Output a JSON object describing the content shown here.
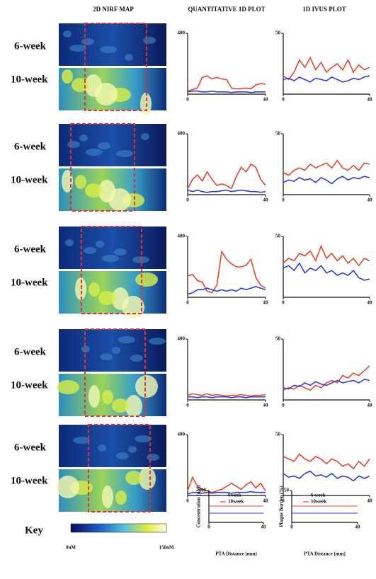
{
  "headers": [
    "2D NIRF MAP",
    "QUANTITATIVE 1D PLOT",
    "1D IVUS PLOT"
  ],
  "rows": [
    [
      "6-week",
      "10-week"
    ],
    [
      "6-week",
      "10-week"
    ],
    [
      "6-week",
      "10-week"
    ],
    [
      "6-week",
      "10-week"
    ],
    [
      "6-week",
      "10-week"
    ]
  ],
  "key": {
    "title": "Key",
    "colorbar": {
      "min_label": "0nM",
      "max_label": "150nM"
    },
    "quant": {
      "ylabel": "Concentration (nM)",
      "xlabel": "PTA Distance (mm)",
      "ylim": [
        0,
        400
      ],
      "yticks": [
        400
      ],
      "xlim": [
        0,
        40
      ],
      "xticks": [
        0,
        40
      ],
      "legend": [
        {
          "name": "6week",
          "color": "#2b3fe0"
        },
        {
          "name": "10week",
          "color": "#e8452b"
        }
      ]
    },
    "ivus": {
      "ylabel": "Plaque Burden (%)",
      "xlabel": "PTA Distance (mm)",
      "ylim": [
        0,
        50
      ],
      "yticks": [
        50
      ],
      "xlim": [
        0,
        40
      ],
      "xticks": [
        0,
        40
      ],
      "legend": [
        {
          "name": "6 week",
          "color": "#2b3fe0"
        },
        {
          "name": "10week",
          "color": "#e8452b"
        }
      ]
    }
  },
  "chart_data": [
    {
      "type": "line",
      "x": [
        0,
        2.5,
        5,
        7.5,
        10,
        12.5,
        15,
        17.5,
        20,
        22.5,
        25,
        27.5,
        30,
        32.5,
        35,
        37.5,
        40
      ],
      "xlim": [
        0,
        40
      ],
      "xticks": [
        0,
        40
      ],
      "ylim": [
        0,
        400
      ],
      "yticks": [
        400
      ],
      "series": [
        {
          "color": "#e8452b",
          "values": [
            20,
            30,
            40,
            110,
            120,
            100,
            110,
            100,
            95,
            40,
            35,
            35,
            40,
            35,
            60,
            70,
            65
          ]
        },
        {
          "color": "#2b3fe0",
          "values": [
            15,
            20,
            20,
            15,
            15,
            20,
            15,
            15,
            15,
            10,
            15,
            15,
            15,
            10,
            15,
            15,
            15
          ]
        }
      ]
    },
    {
      "type": "line",
      "x": [
        0,
        2.5,
        5,
        7.5,
        10,
        12.5,
        15,
        17.5,
        20,
        22.5,
        25,
        27.5,
        30,
        32.5,
        35,
        37.5,
        40
      ],
      "xlim": [
        0,
        40
      ],
      "xticks": [
        0,
        40
      ],
      "ylim": [
        0,
        50
      ],
      "yticks": [
        50
      ],
      "series": [
        {
          "color": "#e8452b",
          "values": [
            15,
            12,
            18,
            28,
            22,
            30,
            20,
            26,
            18,
            22,
            25,
            20,
            28,
            18,
            24,
            20,
            22
          ]
        },
        {
          "color": "#2b3fe0",
          "values": [
            12,
            13,
            11,
            14,
            12,
            10,
            13,
            12,
            11,
            14,
            12,
            10,
            11,
            13,
            12,
            14,
            15
          ]
        }
      ]
    },
    {
      "type": "line",
      "x": [
        0,
        2.5,
        5,
        7.5,
        10,
        12.5,
        15,
        17.5,
        20,
        22.5,
        25,
        27.5,
        30,
        32.5,
        35,
        37.5,
        40
      ],
      "xlim": [
        0,
        40
      ],
      "xticks": [
        0,
        40
      ],
      "ylim": [
        0,
        400
      ],
      "yticks": [
        400
      ],
      "series": [
        {
          "color": "#e8452b",
          "values": [
            40,
            100,
            130,
            90,
            150,
            100,
            60,
            70,
            60,
            40,
            120,
            180,
            150,
            200,
            180,
            100,
            60
          ]
        },
        {
          "color": "#2b3fe0",
          "values": [
            30,
            20,
            30,
            20,
            15,
            20,
            20,
            25,
            30,
            20,
            25,
            30,
            25,
            20,
            20,
            15,
            20
          ]
        }
      ]
    },
    {
      "type": "line",
      "x": [
        0,
        2.5,
        5,
        7.5,
        10,
        12.5,
        15,
        17.5,
        20,
        22.5,
        25,
        27.5,
        30,
        32.5,
        35,
        37.5,
        40
      ],
      "xlim": [
        0,
        40
      ],
      "xticks": [
        0,
        40
      ],
      "ylim": [
        0,
        50
      ],
      "yticks": [
        50
      ],
      "series": [
        {
          "color": "#e8452b",
          "values": [
            18,
            16,
            20,
            22,
            20,
            25,
            22,
            24,
            26,
            22,
            28,
            22,
            20,
            24,
            20,
            26,
            25
          ]
        },
        {
          "color": "#2b3fe0",
          "values": [
            10,
            12,
            11,
            14,
            12,
            13,
            10,
            14,
            12,
            9,
            13,
            15,
            12,
            14,
            13,
            15,
            14
          ]
        }
      ]
    },
    {
      "type": "line",
      "x": [
        0,
        2.5,
        5,
        7.5,
        10,
        12.5,
        15,
        17.5,
        20,
        22.5,
        25,
        27.5,
        30,
        32.5,
        35,
        37.5,
        40
      ],
      "xlim": [
        0,
        40
      ],
      "xticks": [
        0,
        40
      ],
      "ylim": [
        0,
        400
      ],
      "yticks": [
        400
      ],
      "series": [
        {
          "color": "#e8452b",
          "values": [
            140,
            150,
            110,
            100,
            40,
            30,
            80,
            300,
            250,
            220,
            200,
            200,
            210,
            250,
            130,
            80,
            60
          ]
        },
        {
          "color": "#2b3fe0",
          "values": [
            20,
            30,
            50,
            50,
            60,
            50,
            40,
            50,
            40,
            50,
            40,
            60,
            50,
            60,
            70,
            60,
            50
          ]
        }
      ]
    },
    {
      "type": "line",
      "x": [
        0,
        2.5,
        5,
        7.5,
        10,
        12.5,
        15,
        17.5,
        20,
        22.5,
        25,
        27.5,
        30,
        32.5,
        35,
        37.5,
        40
      ],
      "xlim": [
        0,
        40
      ],
      "xticks": [
        0,
        40
      ],
      "ylim": [
        0,
        50
      ],
      "yticks": [
        50
      ],
      "series": [
        {
          "color": "#e8452b",
          "values": [
            28,
            32,
            30,
            36,
            34,
            38,
            30,
            42,
            32,
            36,
            30,
            34,
            28,
            32,
            26,
            32,
            30
          ]
        },
        {
          "color": "#2b3fe0",
          "values": [
            24,
            26,
            22,
            28,
            20,
            24,
            22,
            26,
            20,
            22,
            18,
            20,
            18,
            22,
            16,
            14,
            15
          ]
        }
      ]
    },
    {
      "type": "line",
      "x": [
        0,
        2.5,
        5,
        7.5,
        10,
        12.5,
        15,
        17.5,
        20,
        22.5,
        25,
        27.5,
        30,
        32.5,
        35,
        37.5,
        40
      ],
      "xlim": [
        0,
        40
      ],
      "xticks": [
        0,
        40
      ],
      "ylim": [
        0,
        400
      ],
      "yticks": [
        400
      ],
      "series": [
        {
          "color": "#e8452b",
          "values": [
            30,
            40,
            35,
            30,
            40,
            30,
            35,
            30,
            25,
            30,
            30,
            35,
            30,
            25,
            30,
            30,
            35
          ]
        },
        {
          "color": "#2b3fe0",
          "values": [
            20,
            20,
            15,
            20,
            20,
            15,
            20,
            20,
            20,
            15,
            20,
            20,
            15,
            20,
            20,
            20,
            20
          ]
        }
      ]
    },
    {
      "type": "line",
      "x": [
        0,
        2.5,
        5,
        7.5,
        10,
        12.5,
        15,
        17.5,
        20,
        22.5,
        25,
        27.5,
        30,
        32.5,
        35,
        37.5,
        40
      ],
      "xlim": [
        0,
        40
      ],
      "xticks": [
        0,
        40
      ],
      "ylim": [
        0,
        50
      ],
      "yticks": [
        50
      ],
      "series": [
        {
          "color": "#e8452b",
          "values": [
            8,
            10,
            9,
            12,
            10,
            8,
            12,
            10,
            14,
            16,
            14,
            20,
            18,
            22,
            20,
            24,
            28
          ]
        },
        {
          "color": "#2b3fe0",
          "values": [
            10,
            9,
            12,
            11,
            14,
            12,
            15,
            13,
            12,
            14,
            16,
            14,
            15,
            16,
            14,
            17,
            16
          ]
        }
      ]
    },
    {
      "type": "line",
      "x": [
        0,
        2.5,
        5,
        7.5,
        10,
        12.5,
        15,
        17.5,
        20,
        22.5,
        25,
        27.5,
        30,
        32.5,
        35,
        37.5,
        40
      ],
      "xlim": [
        0,
        40
      ],
      "xticks": [
        0,
        40
      ],
      "ylim": [
        0,
        400
      ],
      "yticks": [
        400
      ],
      "series": [
        {
          "color": "#e8452b",
          "values": [
            30,
            120,
            60,
            40,
            30,
            20,
            30,
            40,
            60,
            80,
            60,
            40,
            70,
            90,
            50,
            80,
            30
          ]
        },
        {
          "color": "#2b3fe0",
          "values": [
            10,
            20,
            20,
            15,
            20,
            15,
            20,
            20,
            20,
            15,
            20,
            20,
            20,
            25,
            20,
            20,
            20
          ]
        }
      ]
    },
    {
      "type": "line",
      "x": [
        0,
        2.5,
        5,
        7.5,
        10,
        12.5,
        15,
        17.5,
        20,
        22.5,
        25,
        27.5,
        30,
        32.5,
        35,
        37.5,
        40
      ],
      "xlim": [
        0,
        40
      ],
      "xticks": [
        0,
        40
      ],
      "ylim": [
        0,
        50
      ],
      "yticks": [
        50
      ],
      "series": [
        {
          "color": "#e8452b",
          "values": [
            32,
            30,
            28,
            34,
            30,
            28,
            32,
            30,
            26,
            30,
            28,
            24,
            26,
            22,
            28,
            24,
            30
          ]
        },
        {
          "color": "#2b3fe0",
          "values": [
            18,
            15,
            16,
            14,
            18,
            20,
            16,
            17,
            15,
            18,
            14,
            16,
            15,
            12,
            16,
            14,
            16
          ]
        }
      ]
    }
  ]
}
